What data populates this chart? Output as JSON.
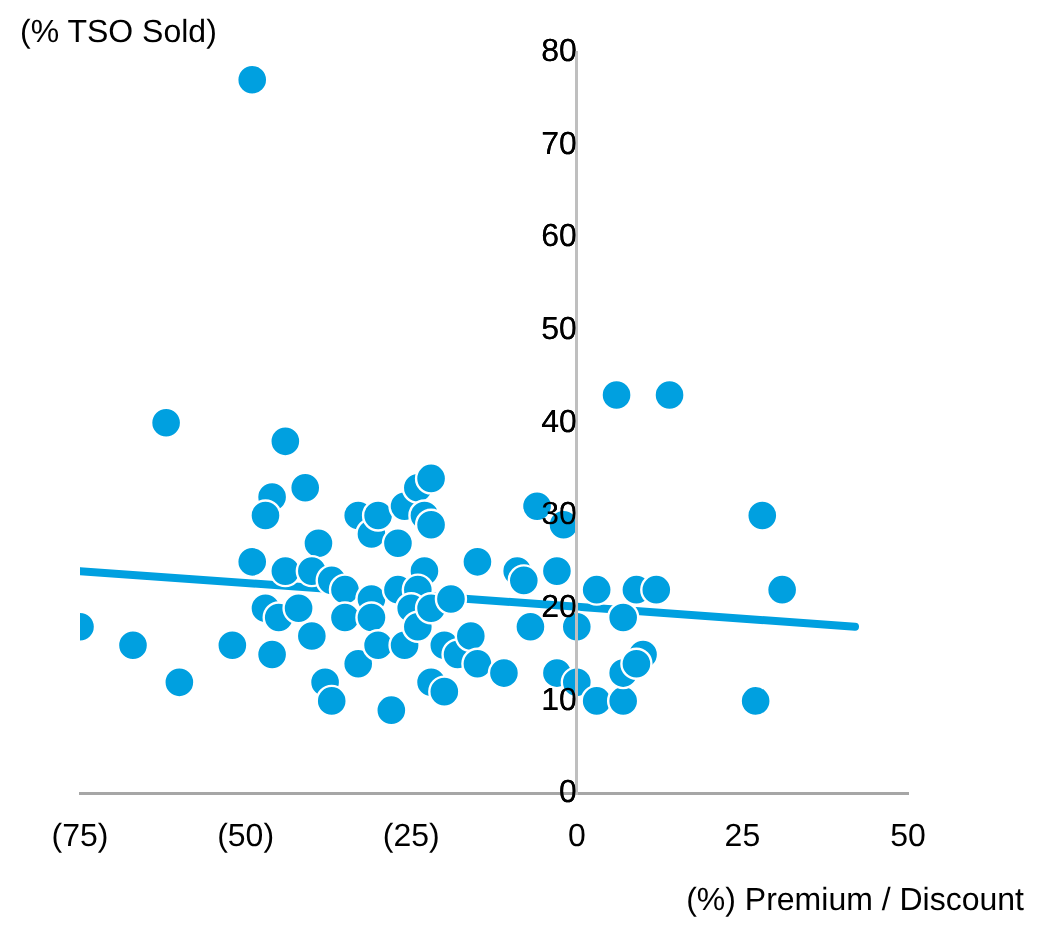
{
  "chart_data": {
    "type": "scatter",
    "xlabel": "(%) Premium / Discount",
    "ylabel": "(% TSO Sold)",
    "xlim": [
      -75,
      50
    ],
    "ylim": [
      0,
      80
    ],
    "xticks": [
      {
        "value": -75,
        "label": "(75)"
      },
      {
        "value": -50,
        "label": "(50)"
      },
      {
        "value": -25,
        "label": "(25)"
      },
      0,
      25,
      50
    ],
    "yticks": [
      0,
      10,
      20,
      30,
      40,
      50,
      60,
      70,
      80
    ],
    "grid": false,
    "legend": false,
    "marker": "circle",
    "series": [
      {
        "color": "#00a0e0",
        "x": [
          -75,
          -67,
          -60,
          -62,
          -49,
          -44,
          -46,
          -47,
          -41,
          -49,
          -44,
          -39,
          -40,
          -37,
          -47,
          -45,
          -42,
          -52,
          -46,
          -40,
          -35,
          -35,
          -38,
          -37,
          -33,
          -33,
          -31,
          -30,
          -31,
          -31,
          -30,
          -27,
          -28,
          -27,
          -26,
          -26,
          -24,
          -22,
          -23,
          -22,
          -23,
          -24,
          -25,
          -24,
          -22,
          -19,
          -20,
          -22,
          -20,
          -18,
          -16,
          -15,
          -15,
          -11,
          -9,
          -8,
          -7,
          -6,
          -3,
          -3,
          -2,
          0,
          0,
          6,
          14,
          28,
          31,
          3,
          9,
          12,
          7,
          3,
          7,
          7,
          10,
          9,
          27
        ],
        "values": [
          18,
          16,
          12,
          40,
          77,
          38,
          32,
          30,
          33,
          25,
          24,
          27,
          24,
          23,
          20,
          19,
          20,
          16,
          15,
          17,
          22,
          19,
          12,
          10,
          14,
          30,
          28,
          30,
          21,
          19,
          16,
          27,
          9,
          22,
          16,
          31,
          33,
          34,
          30,
          29,
          24,
          22,
          20,
          18,
          20,
          21,
          16,
          12,
          11,
          15,
          17,
          14,
          25,
          13,
          24,
          23,
          18,
          31,
          24,
          13,
          29,
          18,
          12,
          43,
          43,
          30,
          22,
          22,
          22,
          22,
          19,
          10,
          10,
          13,
          15,
          14,
          10
        ]
      },
      {
        "type": "line",
        "color": "#00a0e0",
        "marker": "none",
        "x": [
          -75,
          42
        ],
        "values": [
          24,
          18
        ]
      }
    ]
  }
}
